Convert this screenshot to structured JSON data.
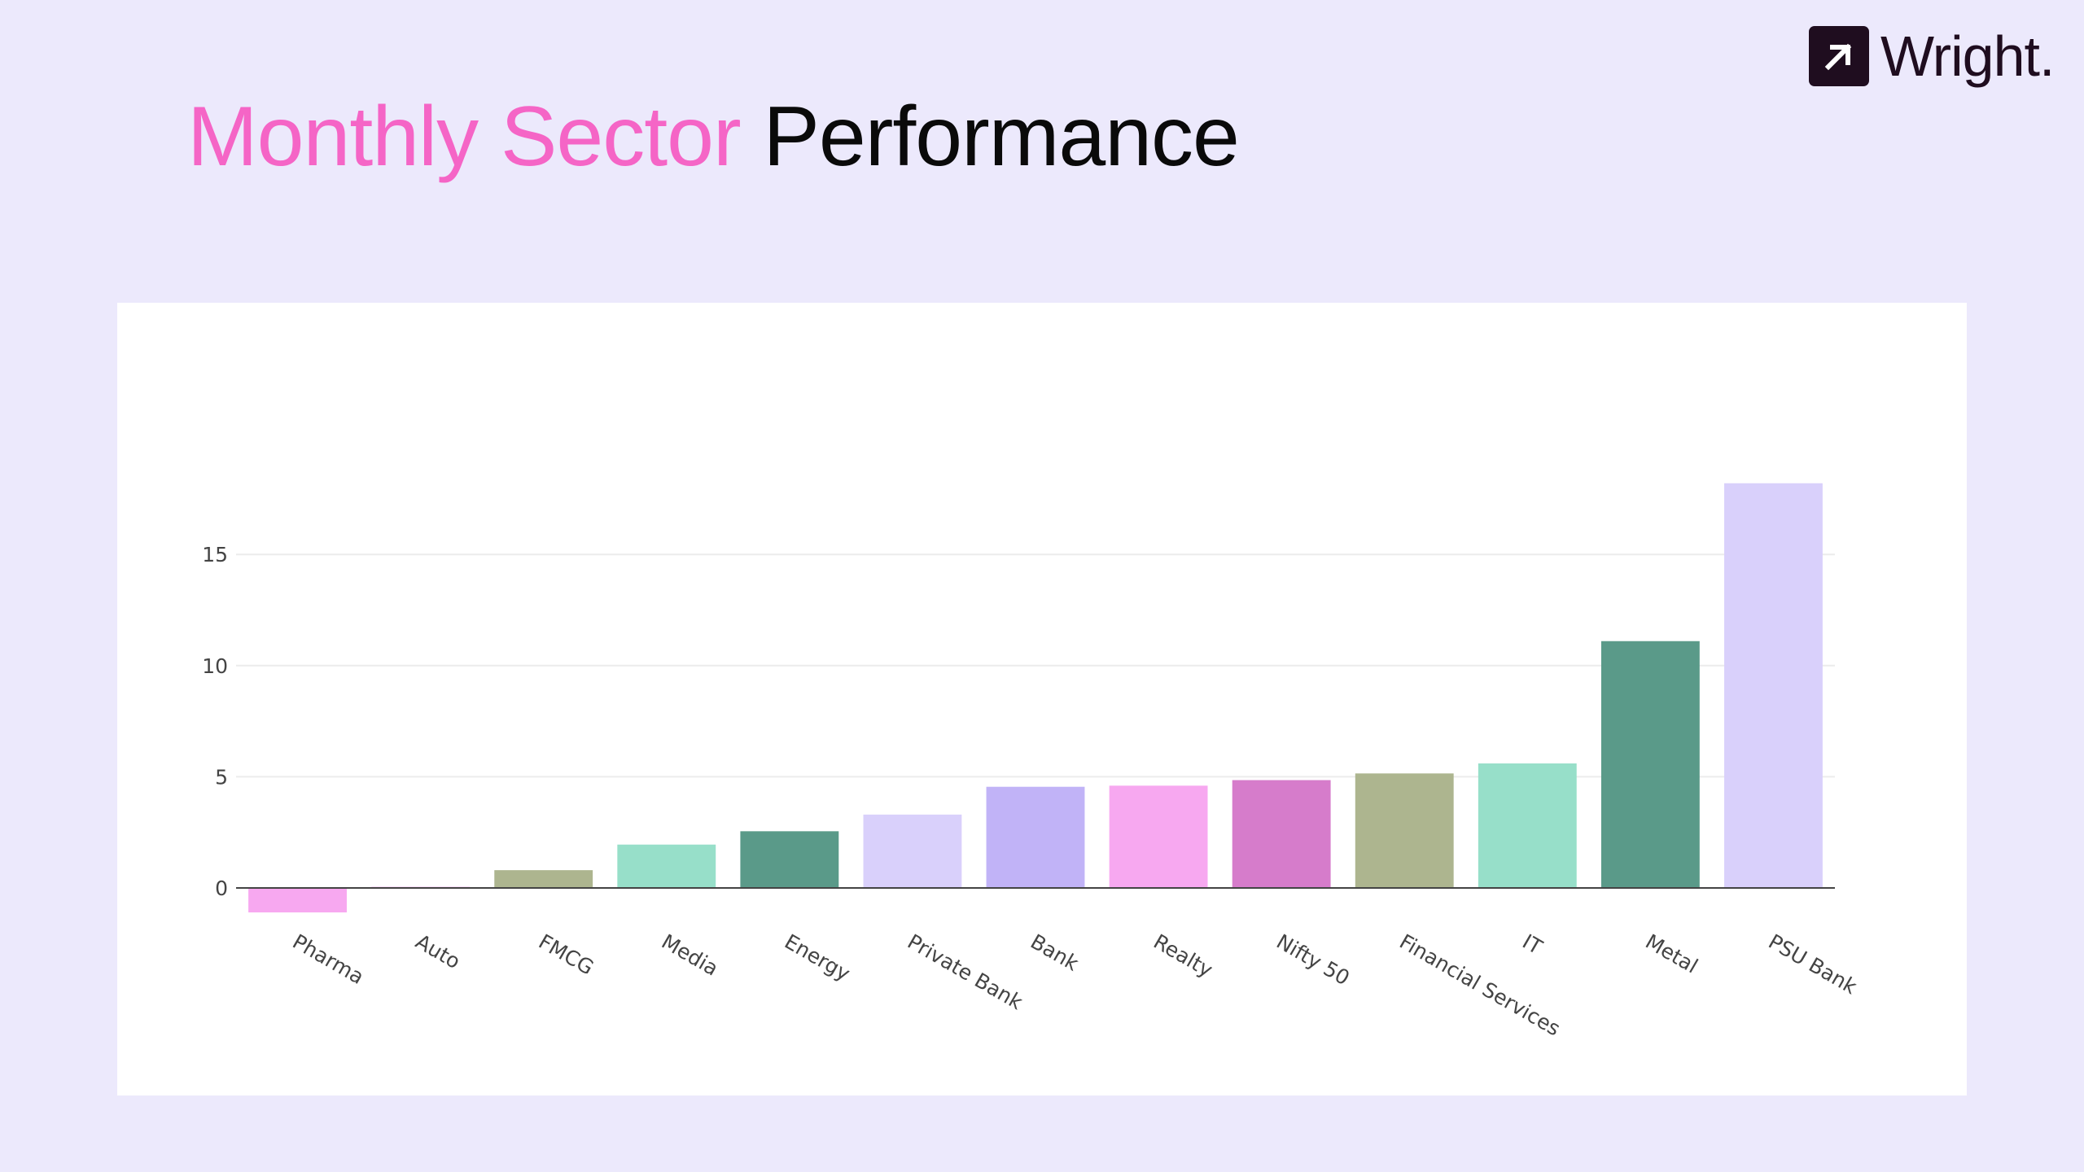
{
  "logo": {
    "text": "Wright.",
    "icon": "arrow-up-right-icon"
  },
  "title": {
    "accent": "Monthly Sector",
    "main": "Performance"
  },
  "colors": {
    "background": "#ece9fc",
    "accent": "#f565c6",
    "card": "#ffffff"
  },
  "chart_data": {
    "type": "bar",
    "title": "",
    "xlabel": "",
    "ylabel": "",
    "ylim": [
      -2,
      21
    ],
    "yticks": [
      0,
      5,
      10,
      15
    ],
    "grid": true,
    "categories": [
      "Pharma",
      "Auto",
      "FMCG",
      "Media",
      "Energy",
      "Private Bank",
      "Bank",
      "Realty",
      "Nifty 50",
      "Financial Services",
      "IT",
      "Metal",
      "PSU Bank"
    ],
    "values": [
      -1.1,
      0.05,
      0.8,
      1.95,
      2.55,
      3.3,
      4.55,
      4.6,
      4.85,
      5.15,
      5.6,
      11.1,
      18.2
    ],
    "bar_colors": [
      "#f7a8f0",
      "#f7a8f0",
      "#adb58f",
      "#97dfc9",
      "#5a9a89",
      "#d9d0fb",
      "#c1b3f7",
      "#f7a8f0",
      "#d67ccb",
      "#adb58f",
      "#97dfc9",
      "#5a9a89",
      "#d9d0fb"
    ]
  }
}
